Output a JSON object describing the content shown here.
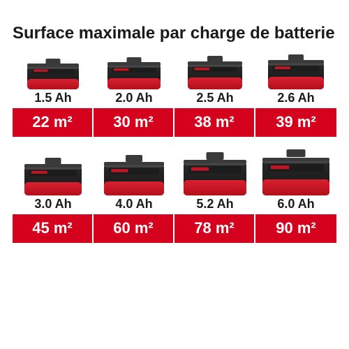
{
  "title": "Surface maximale par charge de batterie",
  "colors": {
    "bg": "#ffffff",
    "text": "#1a1a1a",
    "accent_bg": "#d4021d",
    "accent_text": "#ffffff",
    "battery_body_dark": "#2a2a2a",
    "battery_body_darker": "#141414",
    "battery_red": "#b30f1a",
    "battery_red_light": "#d92030",
    "battery_top": "#3a3a3a"
  },
  "typography": {
    "title_fontsize": 24,
    "capacity_fontsize": 18,
    "area_fontsize": 22,
    "font_family": "Arial"
  },
  "rows": [
    {
      "cells": [
        {
          "capacity": "1.5 Ah",
          "area": "22 m²",
          "battery_width": 74,
          "battery_height": 44
        },
        {
          "capacity": "2.0 Ah",
          "area": "30 m²",
          "battery_width": 76,
          "battery_height": 46
        },
        {
          "capacity": "2.5 Ah",
          "area": "38 m²",
          "battery_width": 78,
          "battery_height": 48
        },
        {
          "capacity": "2.6 Ah",
          "area": "39 m²",
          "battery_width": 80,
          "battery_height": 50
        }
      ]
    },
    {
      "cells": [
        {
          "capacity": "3.0 Ah",
          "area": "45 m²",
          "battery_width": 82,
          "battery_height": 54
        },
        {
          "capacity": "4.0 Ah",
          "area": "60 m²",
          "battery_width": 86,
          "battery_height": 58
        },
        {
          "capacity": "5.2 Ah",
          "area": "78 m²",
          "battery_width": 90,
          "battery_height": 62
        },
        {
          "capacity": "6.0 Ah",
          "area": "90 m²",
          "battery_width": 96,
          "battery_height": 66
        }
      ]
    }
  ]
}
